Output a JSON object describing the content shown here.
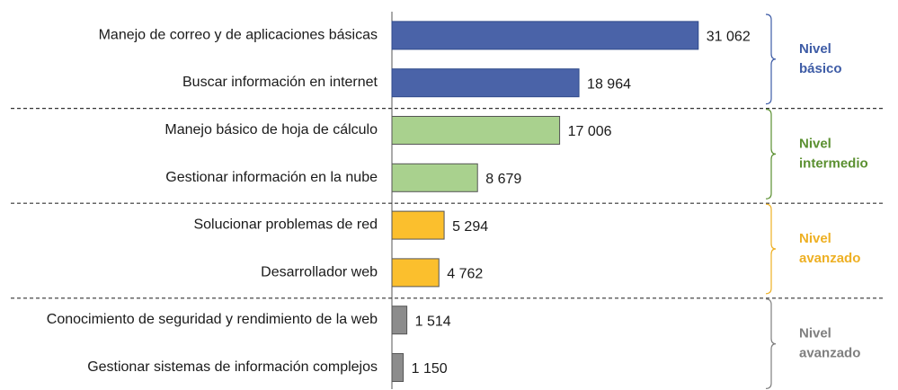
{
  "chart_data": {
    "type": "barh",
    "categories": [
      "Manejo de correo y de aplicaciones básicas",
      "Buscar información en internet",
      "Manejo básico de hoja de cálculo",
      "Gestionar información en la nube",
      "Solucionar problemas de red",
      "Desarrollador web",
      "Conocimiento de seguridad y rendimiento de la web",
      "Gestionar sistemas de información complejos"
    ],
    "values": [
      31062,
      18964,
      17006,
      8679,
      5294,
      4762,
      1514,
      1150
    ],
    "value_labels": [
      "31 062",
      "18 964",
      "17 006",
      "8 679",
      "5 294",
      "4 762",
      "1 514",
      "1 150"
    ],
    "colors": [
      "#4a63a8",
      "#4a63a8",
      "#a9d18e",
      "#a9d18e",
      "#fbbf2d",
      "#fbbf2d",
      "#8c8c8c",
      "#8c8c8c"
    ],
    "xlim": [
      0,
      35000
    ],
    "groups": [
      {
        "name": "Nivel básico",
        "color": "#3e5ca6"
      },
      {
        "name": "Nivel intermedio",
        "color": "#5b9031"
      },
      {
        "name": "Nivel avanzado",
        "color": "#eeb024"
      },
      {
        "name": "Nivel avanzado",
        "color": "#7f7f7f"
      }
    ]
  }
}
